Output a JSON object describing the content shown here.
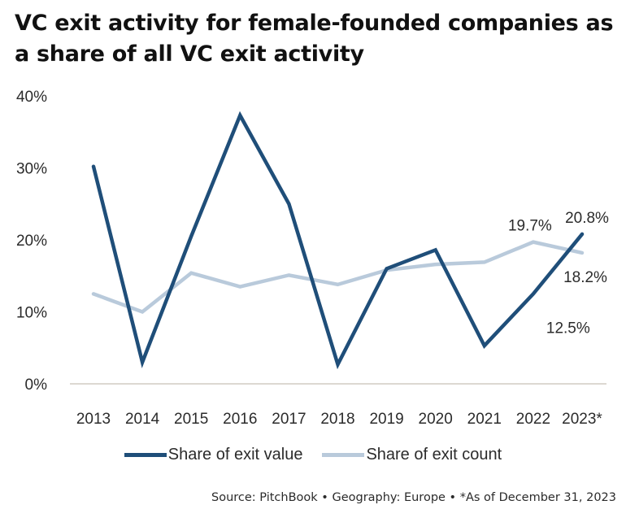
{
  "title": "VC exit activity for female-founded companies as a share of all VC exit activity",
  "source": "Source: PitchBook • Geography: Europe • *As of December 31, 2023",
  "colors": {
    "exit_value": "#1f4e79",
    "exit_count": "#b9cadb",
    "axis": "#c8c0b8"
  },
  "chart_data": {
    "type": "line",
    "title": "VC exit activity for female-founded companies as a share of all VC exit activity",
    "xlabel": "",
    "ylabel": "",
    "categories": [
      "2013",
      "2014",
      "2015",
      "2016",
      "2017",
      "2018",
      "2019",
      "2020",
      "2021",
      "2022",
      "2023*"
    ],
    "ylim": [
      0,
      40
    ],
    "yticks": [
      0,
      10,
      20,
      30,
      40
    ],
    "ytick_labels": [
      "0%",
      "10%",
      "20%",
      "30%",
      "40%"
    ],
    "grid": false,
    "legend_position": "bottom",
    "series": [
      {
        "name": "Share of exit value",
        "color": "#1f4e79",
        "values": [
          30.2,
          3.0,
          20.5,
          37.3,
          25.0,
          2.7,
          16.0,
          18.6,
          5.3,
          12.5,
          20.8
        ]
      },
      {
        "name": "Share of exit count",
        "color": "#b9cadb",
        "values": [
          12.5,
          10.0,
          15.4,
          13.5,
          15.1,
          13.8,
          15.8,
          16.6,
          16.9,
          19.7,
          18.2
        ]
      }
    ],
    "annotations": [
      {
        "series": 0,
        "index": 9,
        "text": "12.5%"
      },
      {
        "series": 0,
        "index": 10,
        "text": "20.8%"
      },
      {
        "series": 1,
        "index": 9,
        "text": "19.7%"
      },
      {
        "series": 1,
        "index": 10,
        "text": "18.2%"
      }
    ]
  }
}
